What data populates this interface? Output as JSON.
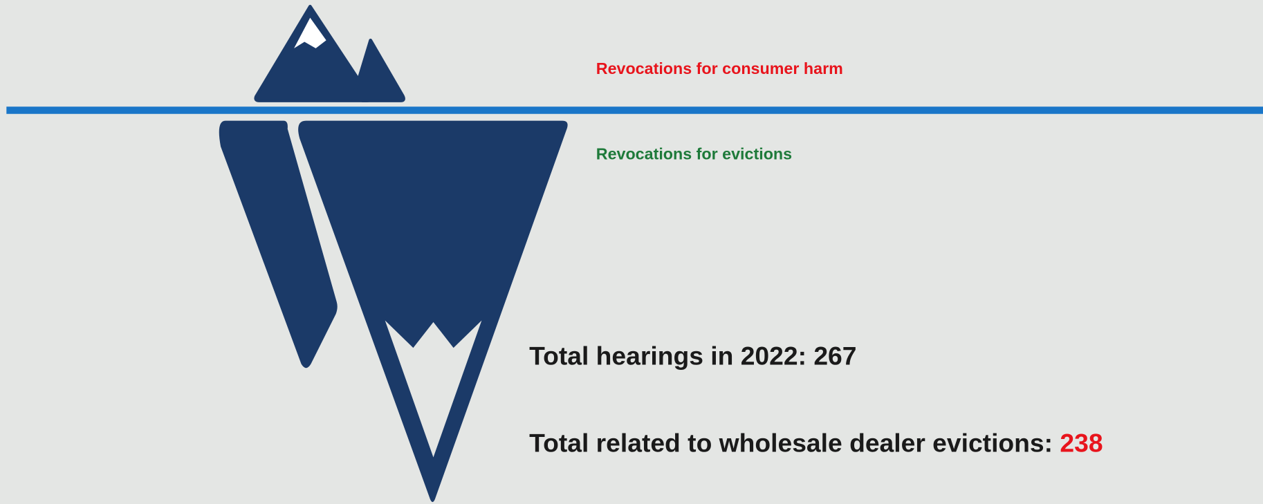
{
  "labels": {
    "above_water": "Revocations for consumer harm",
    "below_water": "Revocations for evictions"
  },
  "totals": {
    "hearings": "Total hearings in 2022: 267",
    "evictions_label": "Total related to wholesale dealer evictions:",
    "evictions_value": "238"
  }
}
